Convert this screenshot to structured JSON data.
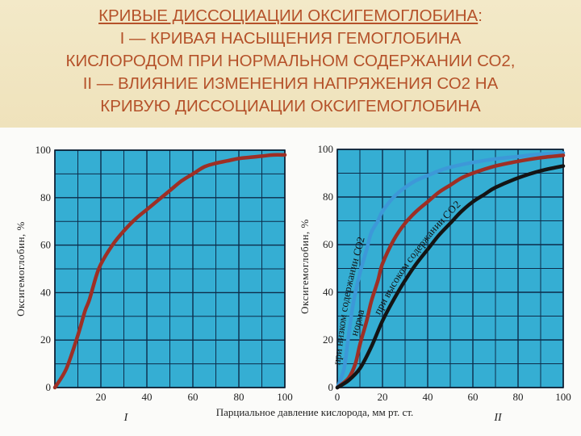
{
  "title": {
    "main": "КРИВЫЕ ДИССОЦИАЦИИ ОКСИГЕМОГЛОБИНА",
    "colon": ":",
    "line2": "I — КРИВАЯ НАСЫЩЕНИЯ ГЕМОГЛОБИНА",
    "line3": "КИСЛОРОДОМ ПРИ НОРМАЛЬНОМ СОДЕРЖАНИИ СО2,",
    "line4": "II — ВЛИЯНИЕ ИЗМЕНЕНИЯ НАПРЯЖЕНИЯ СО2 НА",
    "line5": "КРИВУЮ ДИССОЦИАЦИИ ОКСИГЕМОГЛОБИНА"
  },
  "colors": {
    "grid_bg": "#35aed3",
    "grid_line": "#0d2c4a",
    "normal_curve": "#9e2f25",
    "low_co2_curve": "#3d98d8",
    "high_co2_curve": "#141414",
    "title_text": "#b5522a"
  },
  "shared_xlabel": "Парциальное давление кислорода, мм рт. ст.",
  "chart_data": [
    {
      "type": "line",
      "panel_label": "I",
      "ylabel": "Оксигемоглобин, %",
      "xlim": [
        0,
        100
      ],
      "ylim": [
        0,
        100
      ],
      "grid": true,
      "x_ticks": [
        "20",
        "40",
        "60",
        "80",
        "100"
      ],
      "y_ticks": [
        "0",
        "20",
        "40",
        "60",
        "80",
        "100"
      ],
      "series": [
        {
          "color": "#9e2f25",
          "x": [
            0,
            5,
            10,
            13,
            15,
            18,
            20,
            25,
            30,
            35,
            40,
            45,
            50,
            55,
            60,
            65,
            70,
            75,
            80,
            85,
            90,
            95,
            100
          ],
          "y": [
            0,
            8,
            22,
            32,
            37,
            47,
            52,
            60,
            66,
            71,
            75,
            79,
            83,
            87,
            90,
            93,
            94.5,
            95.5,
            96.5,
            97,
            97.5,
            98,
            98
          ]
        }
      ]
    },
    {
      "type": "line",
      "panel_label": "II",
      "ylabel": "Оксигемоглобин, %",
      "xlim": [
        0,
        100
      ],
      "ylim": [
        0,
        100
      ],
      "grid": true,
      "x_ticks": [
        "0",
        "20",
        "40",
        "60",
        "80",
        "100"
      ],
      "y_ticks": [
        "0",
        "20",
        "40",
        "60",
        "80",
        "100"
      ],
      "series": [
        {
          "name": "при низком содержании CO2",
          "color": "#3d98d8",
          "x": [
            0,
            3,
            5,
            7,
            10,
            13,
            15,
            18,
            20,
            25,
            30,
            35,
            40,
            45,
            50,
            60,
            70,
            80,
            90,
            100
          ],
          "y": [
            0,
            8,
            22,
            35,
            48,
            58,
            65,
            70,
            74,
            80,
            84,
            87,
            89,
            91,
            92.5,
            94.5,
            96,
            97,
            98,
            98.5
          ]
        },
        {
          "name": "норма",
          "color": "#9e2f25",
          "x": [
            0,
            5,
            8,
            10,
            13,
            15,
            18,
            20,
            25,
            30,
            35,
            40,
            45,
            50,
            55,
            60,
            70,
            80,
            90,
            100
          ],
          "y": [
            0,
            4,
            10,
            18,
            28,
            36,
            45,
            52,
            62,
            69,
            74,
            78,
            82,
            85,
            88,
            90,
            93,
            95,
            96.5,
            97.5
          ]
        },
        {
          "name": "при высоком содержании CO2",
          "color": "#141414",
          "x": [
            0,
            5,
            10,
            15,
            20,
            25,
            30,
            35,
            40,
            45,
            50,
            55,
            60,
            65,
            70,
            80,
            90,
            100
          ],
          "y": [
            0,
            3,
            8,
            17,
            28,
            37,
            45,
            52,
            58,
            64,
            69,
            74,
            78,
            81,
            84,
            88,
            91,
            93
          ]
        }
      ]
    }
  ]
}
